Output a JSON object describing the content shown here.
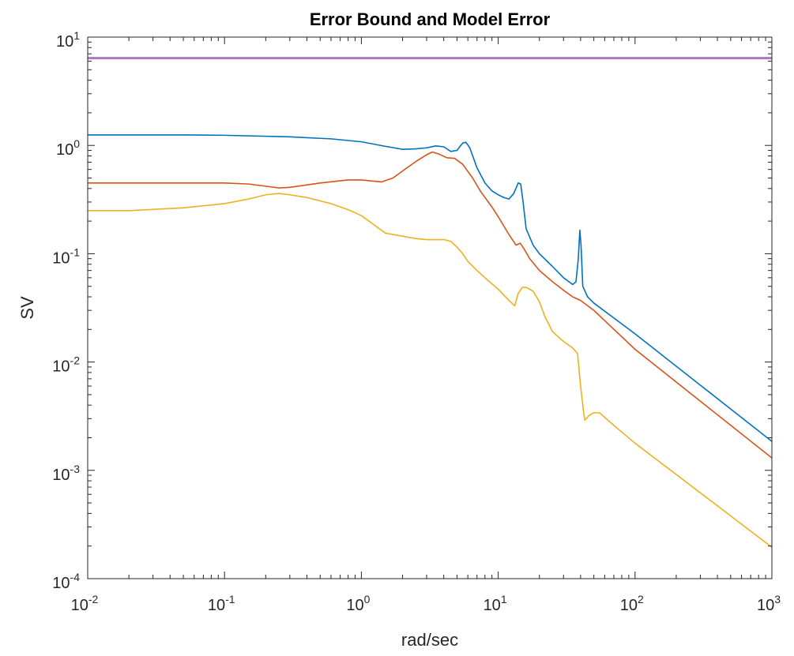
{
  "chart_data": {
    "type": "line",
    "title": "Error Bound and Model Error",
    "xlabel": "rad/sec",
    "ylabel": "SV",
    "xscale": "log",
    "yscale": "log",
    "xlim": [
      0.01,
      1000
    ],
    "ylim": [
      0.0001,
      10
    ],
    "grid": false,
    "legend": "none",
    "xticks": [
      {
        "value": 0.01,
        "base": "10",
        "exp": "-2"
      },
      {
        "value": 0.1,
        "base": "10",
        "exp": "-1"
      },
      {
        "value": 1,
        "base": "10",
        "exp": "0"
      },
      {
        "value": 10,
        "base": "10",
        "exp": "1"
      },
      {
        "value": 100,
        "base": "10",
        "exp": "2"
      },
      {
        "value": 1000,
        "base": "10",
        "exp": "3"
      }
    ],
    "yticks": [
      {
        "value": 0.0001,
        "base": "10",
        "exp": "-4"
      },
      {
        "value": 0.001,
        "base": "10",
        "exp": "-3"
      },
      {
        "value": 0.01,
        "base": "10",
        "exp": "-2"
      },
      {
        "value": 0.1,
        "base": "10",
        "exp": "-1"
      },
      {
        "value": 1,
        "base": "10",
        "exp": "0"
      },
      {
        "value": 10,
        "base": "10",
        "exp": "1"
      }
    ],
    "series": [
      {
        "color": "#0072BD",
        "points": [
          [
            0.01,
            1.25
          ],
          [
            0.05,
            1.25
          ],
          [
            0.1,
            1.24
          ],
          [
            0.3,
            1.2
          ],
          [
            0.6,
            1.15
          ],
          [
            1,
            1.08
          ],
          [
            1.5,
            0.98
          ],
          [
            2,
            0.92
          ],
          [
            2.5,
            0.93
          ],
          [
            3,
            0.95
          ],
          [
            3.5,
            0.99
          ],
          [
            4,
            0.97
          ],
          [
            4.5,
            0.88
          ],
          [
            5,
            0.9
          ],
          [
            5.5,
            1.05
          ],
          [
            5.8,
            1.07
          ],
          [
            6.2,
            0.95
          ],
          [
            7,
            0.62
          ],
          [
            8,
            0.45
          ],
          [
            9,
            0.38
          ],
          [
            10,
            0.35
          ],
          [
            11,
            0.33
          ],
          [
            12,
            0.32
          ],
          [
            13,
            0.36
          ],
          [
            14,
            0.45
          ],
          [
            14.6,
            0.44
          ],
          [
            15.2,
            0.3
          ],
          [
            16,
            0.17
          ],
          [
            18,
            0.12
          ],
          [
            20,
            0.1
          ],
          [
            25,
            0.076
          ],
          [
            30,
            0.06
          ],
          [
            35,
            0.052
          ],
          [
            37,
            0.055
          ],
          [
            38.5,
            0.09
          ],
          [
            39.5,
            0.165
          ],
          [
            40.3,
            0.12
          ],
          [
            41.5,
            0.05
          ],
          [
            45,
            0.04
          ],
          [
            50,
            0.035
          ],
          [
            100,
            0.0182
          ],
          [
            1000,
            0.00185
          ]
        ]
      },
      {
        "color": "#D95319",
        "points": [
          [
            0.01,
            0.45
          ],
          [
            0.05,
            0.45
          ],
          [
            0.1,
            0.45
          ],
          [
            0.15,
            0.44
          ],
          [
            0.2,
            0.42
          ],
          [
            0.25,
            0.405
          ],
          [
            0.3,
            0.41
          ],
          [
            0.5,
            0.45
          ],
          [
            0.8,
            0.48
          ],
          [
            1,
            0.48
          ],
          [
            1.4,
            0.46
          ],
          [
            1.7,
            0.5
          ],
          [
            2,
            0.58
          ],
          [
            2.5,
            0.71
          ],
          [
            3,
            0.82
          ],
          [
            3.3,
            0.87
          ],
          [
            3.7,
            0.83
          ],
          [
            4.2,
            0.77
          ],
          [
            4.8,
            0.76
          ],
          [
            5.5,
            0.67
          ],
          [
            6.5,
            0.5
          ],
          [
            7.5,
            0.37
          ],
          [
            9,
            0.27
          ],
          [
            10,
            0.22
          ],
          [
            12,
            0.15
          ],
          [
            13.5,
            0.12
          ],
          [
            14.5,
            0.125
          ],
          [
            15.5,
            0.11
          ],
          [
            17,
            0.09
          ],
          [
            20,
            0.07
          ],
          [
            25,
            0.055
          ],
          [
            30,
            0.046
          ],
          [
            35,
            0.04
          ],
          [
            40,
            0.037
          ],
          [
            50,
            0.03
          ],
          [
            100,
            0.0131
          ],
          [
            1000,
            0.0013
          ]
        ]
      },
      {
        "color": "#EDB120",
        "points": [
          [
            0.01,
            0.25
          ],
          [
            0.02,
            0.25
          ],
          [
            0.05,
            0.265
          ],
          [
            0.1,
            0.29
          ],
          [
            0.15,
            0.32
          ],
          [
            0.2,
            0.35
          ],
          [
            0.25,
            0.36
          ],
          [
            0.3,
            0.35
          ],
          [
            0.4,
            0.33
          ],
          [
            0.6,
            0.29
          ],
          [
            0.8,
            0.255
          ],
          [
            1,
            0.225
          ],
          [
            1.2,
            0.19
          ],
          [
            1.5,
            0.155
          ],
          [
            2,
            0.145
          ],
          [
            2.5,
            0.138
          ],
          [
            3,
            0.135
          ],
          [
            3.5,
            0.135
          ],
          [
            4,
            0.135
          ],
          [
            4.5,
            0.13
          ],
          [
            5,
            0.115
          ],
          [
            5.5,
            0.1
          ],
          [
            6,
            0.085
          ],
          [
            7,
            0.07
          ],
          [
            8,
            0.06
          ],
          [
            10,
            0.047
          ],
          [
            12,
            0.037
          ],
          [
            13.2,
            0.033
          ],
          [
            14,
            0.043
          ],
          [
            15,
            0.049
          ],
          [
            16,
            0.049
          ],
          [
            18,
            0.045
          ],
          [
            20,
            0.036
          ],
          [
            22,
            0.026
          ],
          [
            25,
            0.019
          ],
          [
            30,
            0.0155
          ],
          [
            35,
            0.0135
          ],
          [
            38,
            0.012
          ],
          [
            40,
            0.006
          ],
          [
            42,
            0.0035
          ],
          [
            43,
            0.0029
          ],
          [
            46,
            0.0032
          ],
          [
            50,
            0.0034
          ],
          [
            55,
            0.0034
          ],
          [
            70,
            0.0026
          ],
          [
            100,
            0.00178
          ],
          [
            1000,
            0.000195
          ]
        ]
      },
      {
        "color": "#A877C6",
        "points": [
          [
            0.01,
            6.4
          ],
          [
            1000,
            6.4
          ]
        ]
      }
    ]
  }
}
